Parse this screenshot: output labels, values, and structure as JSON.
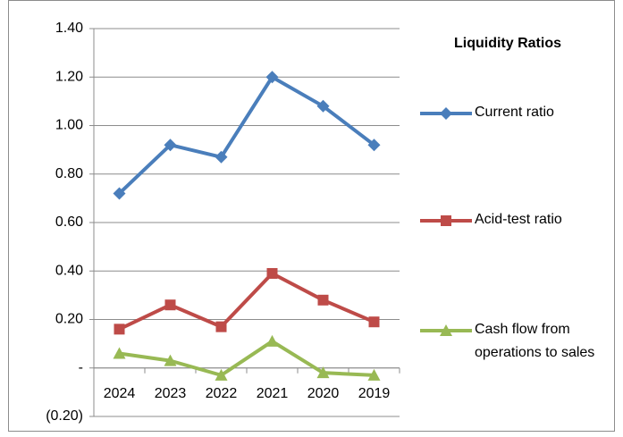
{
  "chart_data": {
    "type": "line",
    "title": "Liquidity Ratios",
    "categories": [
      "2024",
      "2023",
      "2022",
      "2021",
      "2020",
      "2019"
    ],
    "series": [
      {
        "name": "Current ratio",
        "color": "#4a7ebb",
        "marker": "diamond",
        "values": [
          0.72,
          0.92,
          0.87,
          1.2,
          1.08,
          0.92
        ]
      },
      {
        "name": "Acid-test ratio",
        "color": "#be4b48",
        "marker": "square",
        "values": [
          0.16,
          0.26,
          0.17,
          0.39,
          0.28,
          0.19
        ]
      },
      {
        "name": "Cash flow from operations to sales",
        "color": "#98b954",
        "marker": "triangle",
        "values": [
          0.06,
          0.03,
          -0.03,
          0.11,
          -0.02,
          -0.03
        ]
      }
    ],
    "ylim": [
      -0.2,
      1.4
    ],
    "yticks": [
      {
        "value": -0.2,
        "label": "(0.20)"
      },
      {
        "value": 0,
        "label": "-"
      },
      {
        "value": 0.2,
        "label": "0.20"
      },
      {
        "value": 0.4,
        "label": "0.40"
      },
      {
        "value": 0.6,
        "label": "0.60"
      },
      {
        "value": 0.8,
        "label": "0.80"
      },
      {
        "value": 1.0,
        "label": "1.00"
      },
      {
        "value": 1.2,
        "label": "1.20"
      },
      {
        "value": 1.4,
        "label": "1.40"
      }
    ],
    "grid": true,
    "legend": "right"
  }
}
